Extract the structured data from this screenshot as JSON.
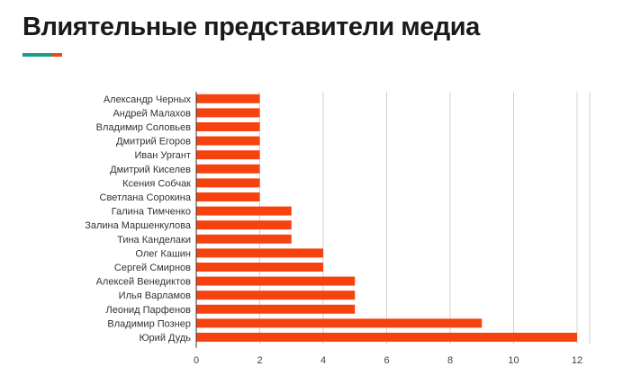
{
  "chart_data": {
    "type": "bar",
    "orientation": "horizontal",
    "title": "Влиятельные представители медиа",
    "categories": [
      "Александр Черных",
      "Андрей Малахов",
      "Владимир Соловьев",
      "Дмитрий Егоров",
      "Иван Ургант",
      "Дмитрий Киселев",
      "Ксения Собчак",
      "Светлана Сорокина",
      "Галина Тимченко",
      "Залина Маршенкулова",
      "Тина Канделаки",
      "Олег Кашин",
      "Сергей Смирнов",
      "Алексей Венедиктов",
      "Илья Варламов",
      "Леонид Парфенов",
      "Владимир Познер",
      "Юрий Дудь"
    ],
    "values": [
      2,
      2,
      2,
      2,
      2,
      2,
      2,
      2,
      3,
      3,
      3,
      4,
      4,
      5,
      5,
      5,
      9,
      12
    ],
    "xticks": [
      "0",
      "2",
      "4",
      "6",
      "8",
      "10",
      "12"
    ],
    "xlim": [
      0,
      12.4
    ],
    "xlabel": "",
    "ylabel": "",
    "grid": true,
    "bar_color": "#f5420e",
    "accent_colors": [
      "#1a9b8a",
      "#f04a12"
    ]
  }
}
